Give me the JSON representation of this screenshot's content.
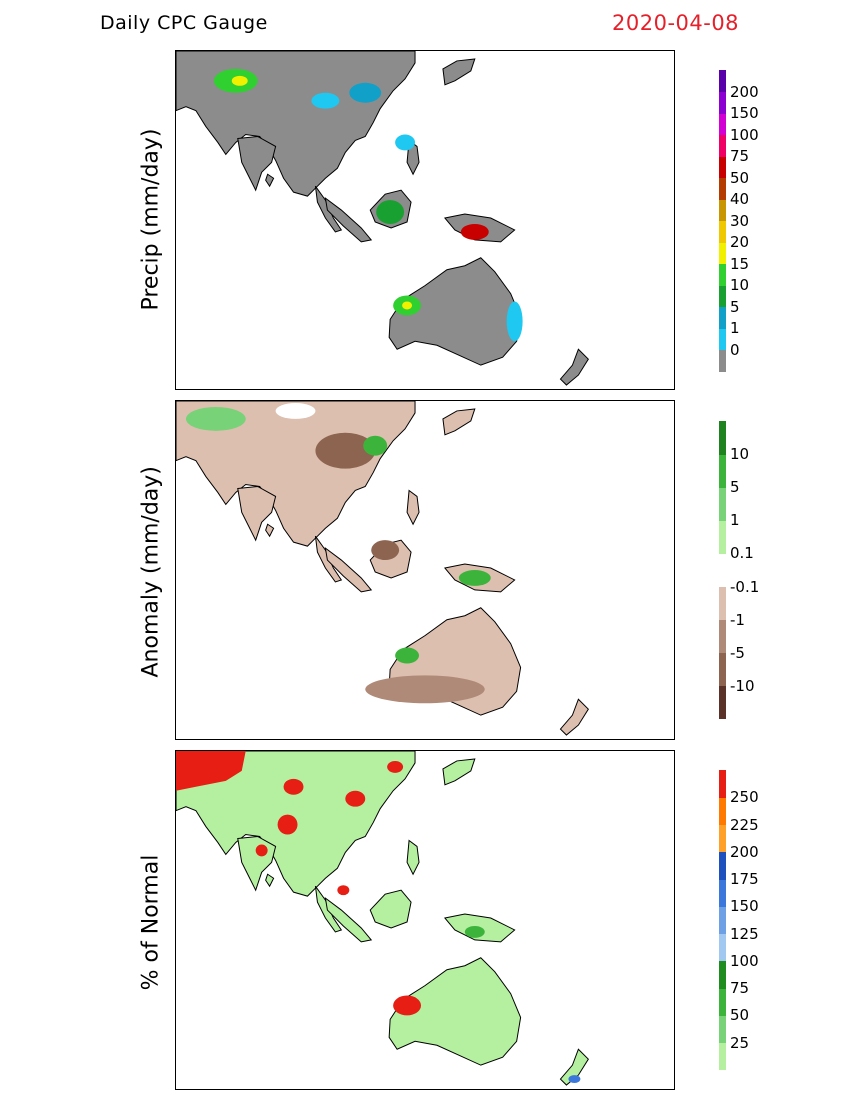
{
  "header": {
    "title": "Daily CPC Gauge",
    "date": "2020-04-08"
  },
  "panels": [
    {
      "ylabel": "Precip (mm/day)",
      "ocean_color": "#ffffff",
      "land_color": "#8c8c8c",
      "colorbar": {
        "colors": [
          "#8c8c8c",
          "#1ec8f0",
          "#10a0c8",
          "#18a030",
          "#30d030",
          "#f0f000",
          "#f0c800",
          "#c89600",
          "#b43c00",
          "#c80000",
          "#f00064",
          "#d200d2",
          "#8c00d2",
          "#5a00aa"
        ],
        "labels": [
          "0",
          "1",
          "5",
          "10",
          "15",
          "20",
          "30",
          "40",
          "50",
          "75",
          "100",
          "150",
          "200"
        ]
      }
    },
    {
      "ylabel": "Anomaly (mm/day)",
      "ocean_color": "#ffffff",
      "land_color": "#ddbfb0",
      "colorbar": {
        "colors": [
          "#5a3228",
          "#8c6450",
          "#b08a78",
          "#ddbfb0",
          "#ffffff",
          "#b4f0a0",
          "#78d278",
          "#3cb43c",
          "#1e821e"
        ],
        "labels": [
          "-10",
          "-5",
          "-1",
          "-0.1",
          "0.1",
          "1",
          "5",
          "10"
        ]
      }
    },
    {
      "ylabel": "% of Normal",
      "ocean_color": "#ffffff",
      "land_color": "#b4f0a0",
      "colorbar": {
        "colors": [
          "#b4f0a0",
          "#78d278",
          "#3cb43c",
          "#1e8c1e",
          "#a0c8f0",
          "#6ea0e6",
          "#3c78dc",
          "#1e50be",
          "#ffa028",
          "#ff7800",
          "#e61e14"
        ],
        "labels": [
          "25",
          "50",
          "75",
          "100",
          "125",
          "150",
          "175",
          "200",
          "225",
          "250"
        ]
      }
    }
  ]
}
